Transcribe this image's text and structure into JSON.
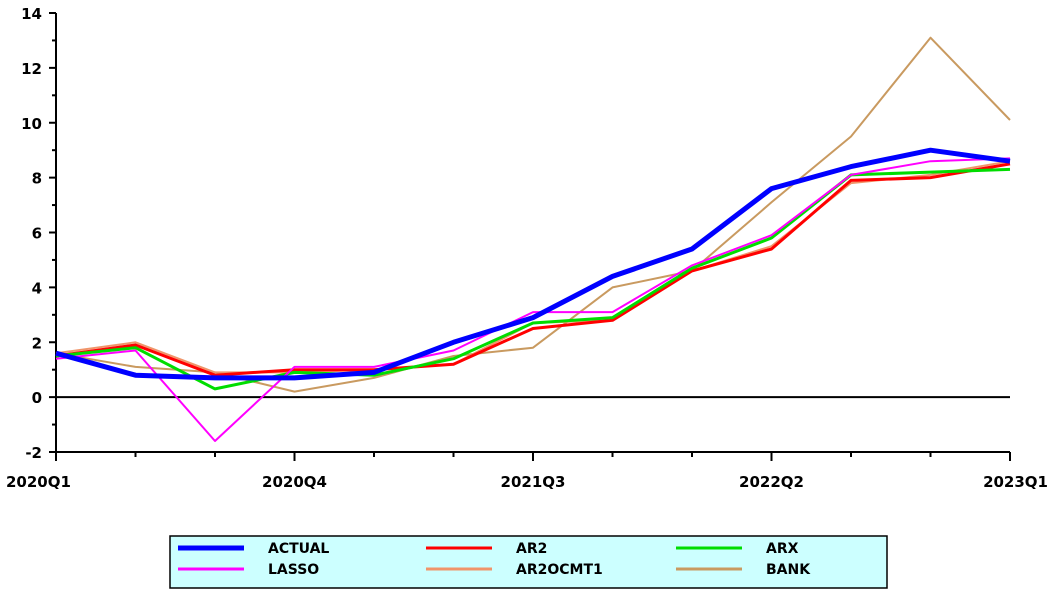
{
  "chart_data": {
    "type": "line",
    "title": "",
    "xlabel": "",
    "ylabel": "",
    "categories": [
      "2020Q1",
      "2020Q2",
      "2020Q3",
      "2020Q4",
      "2021Q1",
      "2021Q2",
      "2021Q3",
      "2021Q4",
      "2022Q1",
      "2022Q2",
      "2022Q3",
      "2022Q4",
      "2023Q1"
    ],
    "x_tick_labels": [
      "2020Q1",
      "2020Q4",
      "2021Q3",
      "2022Q2",
      "2023Q1"
    ],
    "ylim": [
      -2,
      14
    ],
    "y_ticks": [
      -2,
      0,
      2,
      4,
      6,
      8,
      10,
      12,
      14
    ],
    "zero_line": true,
    "grid": false,
    "legend_position": "bottom",
    "series": [
      {
        "name": "ACTUAL",
        "color": "#0000ff",
        "width": 5,
        "values": [
          1.6,
          0.8,
          0.7,
          0.7,
          0.9,
          2.0,
          2.9,
          4.4,
          5.4,
          7.6,
          8.4,
          9.0,
          8.6
        ]
      },
      {
        "name": "AR2",
        "color": "#ff0000",
        "width": 3,
        "values": [
          1.5,
          1.9,
          0.8,
          1.0,
          1.0,
          1.2,
          2.5,
          2.8,
          4.6,
          5.4,
          7.9,
          8.0,
          8.5
        ]
      },
      {
        "name": "ARX",
        "color": "#00dd00",
        "width": 3,
        "values": [
          1.5,
          1.8,
          0.3,
          0.9,
          0.8,
          1.4,
          2.7,
          2.9,
          4.7,
          5.8,
          8.1,
          8.2,
          8.3
        ]
      },
      {
        "name": "LASSO",
        "color": "#ff00ff",
        "width": 2,
        "values": [
          1.4,
          1.7,
          -1.6,
          1.1,
          1.1,
          1.7,
          3.1,
          3.1,
          4.8,
          5.9,
          8.1,
          8.6,
          8.7
        ]
      },
      {
        "name": "AR2OCMT1",
        "color": "#f0956a",
        "width": 2,
        "values": [
          1.6,
          2.0,
          0.9,
          0.9,
          1.0,
          1.2,
          2.7,
          2.8,
          4.6,
          5.5,
          7.8,
          8.1,
          8.6
        ]
      },
      {
        "name": "BANK",
        "color": "#c99a60",
        "width": 2,
        "values": [
          1.6,
          1.1,
          0.9,
          0.2,
          0.7,
          1.5,
          1.8,
          4.0,
          4.6,
          7.1,
          9.5,
          13.1,
          10.1
        ]
      }
    ]
  },
  "legend": {
    "background": "#ccffff",
    "entries": [
      {
        "name": "ACTUAL"
      },
      {
        "name": "AR2"
      },
      {
        "name": "ARX"
      },
      {
        "name": "LASSO"
      },
      {
        "name": "AR2OCMT1"
      },
      {
        "name": "BANK"
      }
    ]
  }
}
